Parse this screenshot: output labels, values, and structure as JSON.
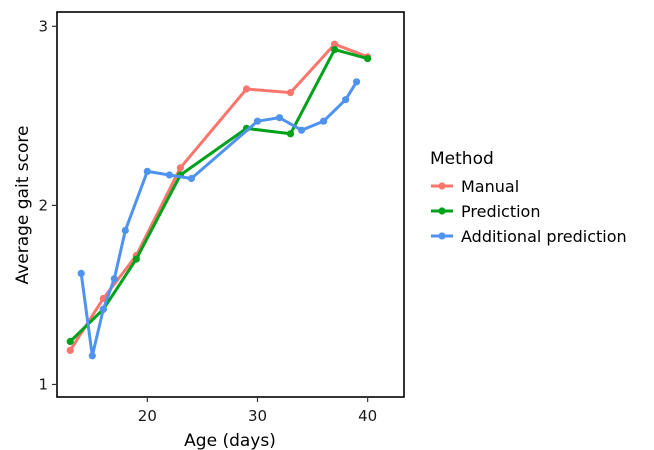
{
  "chart_data": {
    "type": "line",
    "title": "",
    "xlabel": "Age (days)",
    "ylabel": "Average gait score",
    "xlim": [
      11.8,
      43.3
    ],
    "ylim": [
      0.93,
      3.08
    ],
    "xticks": [
      20,
      30,
      40
    ],
    "yticks": [
      1,
      2,
      3
    ],
    "grid": false,
    "legend": {
      "title": "Method",
      "placement": "right"
    },
    "series": [
      {
        "name": "Manual",
        "color": "#F8766D",
        "x": [
          13,
          16,
          19,
          23,
          29,
          33,
          37,
          40
        ],
        "y": [
          1.19,
          1.48,
          1.72,
          2.21,
          2.65,
          2.63,
          2.9,
          2.83
        ]
      },
      {
        "name": "Prediction",
        "color": "#00A21B",
        "x": [
          13,
          16,
          19,
          23,
          29,
          33,
          37,
          40
        ],
        "y": [
          1.24,
          1.42,
          1.7,
          2.17,
          2.43,
          2.4,
          2.87,
          2.82
        ]
      },
      {
        "name": "Additional prediction",
        "color": "#4F93F0",
        "x": [
          14,
          15,
          16,
          17,
          18,
          20,
          22,
          24,
          30,
          32,
          34,
          36,
          38,
          39
        ],
        "y": [
          1.62,
          1.16,
          1.42,
          1.59,
          1.86,
          2.19,
          2.17,
          2.15,
          2.47,
          2.49,
          2.42,
          2.47,
          2.59,
          2.69
        ]
      }
    ]
  }
}
